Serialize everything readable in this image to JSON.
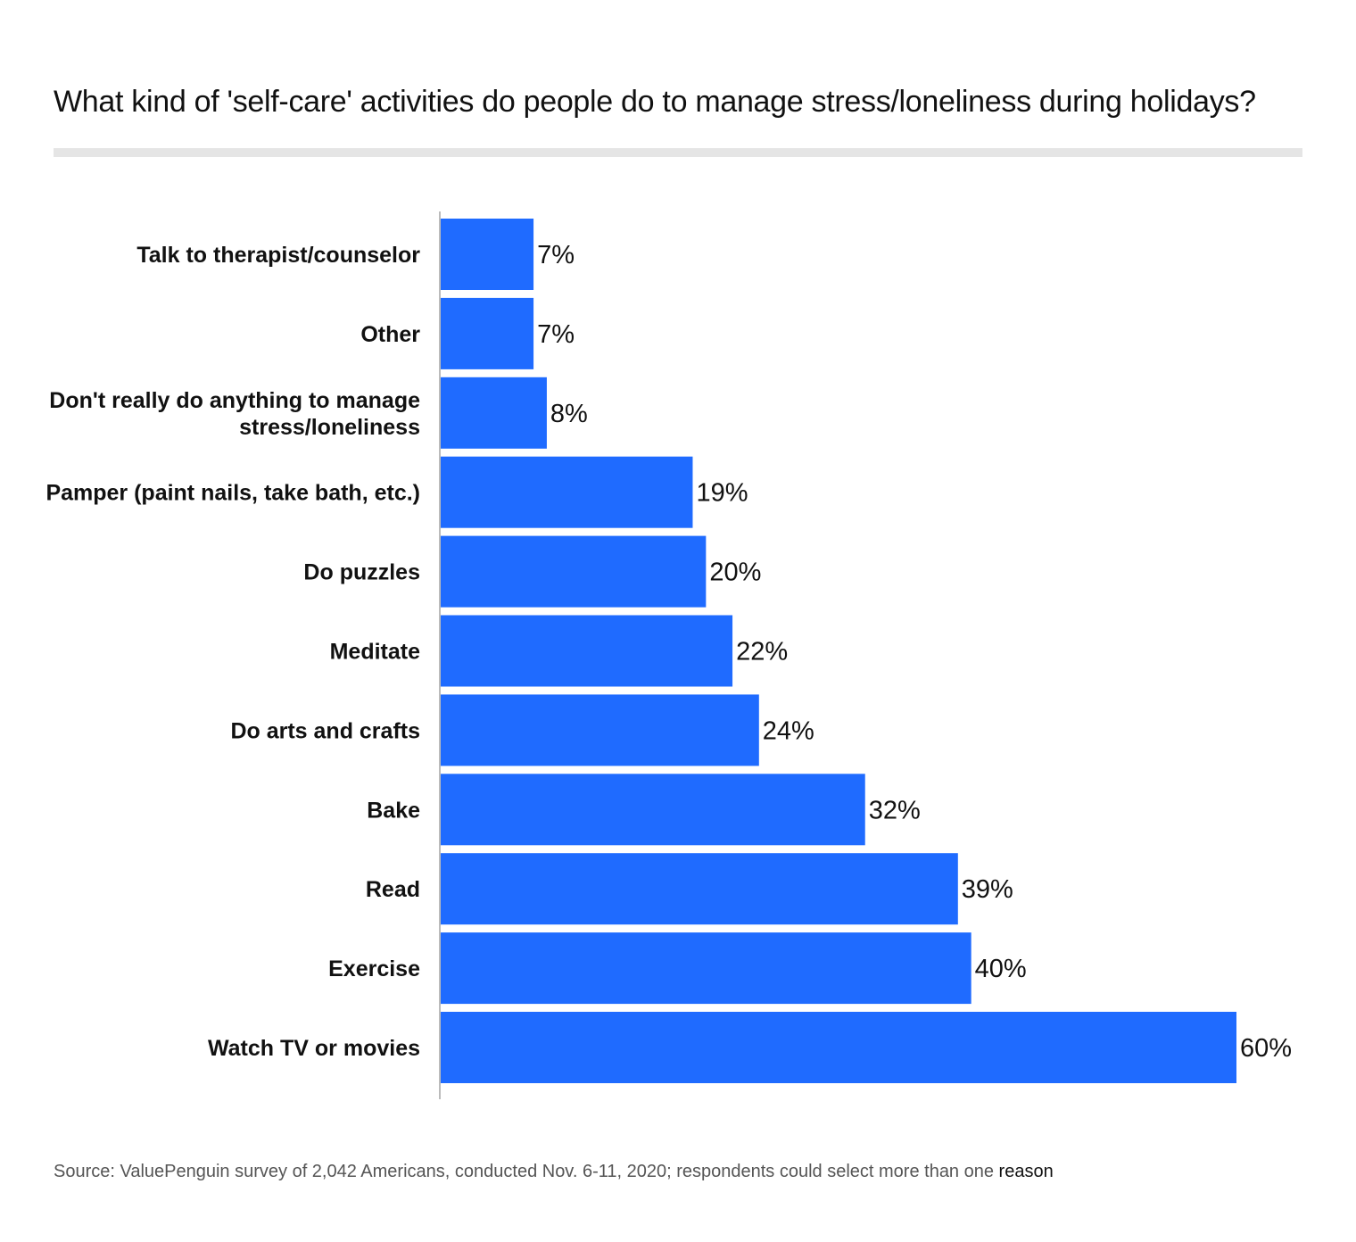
{
  "chart_data": {
    "type": "bar",
    "orientation": "horizontal",
    "title": "What kind of 'self-care' activities do people do to manage stress/loneliness during holidays?",
    "categories": [
      [
        "Talk to therapist/counselor"
      ],
      [
        "Other"
      ],
      [
        "Don't really do anything to manage",
        "stress/loneliness"
      ],
      [
        "Pamper (paint nails, take bath, etc.)"
      ],
      [
        "Do puzzles"
      ],
      [
        "Meditate"
      ],
      [
        "Do arts and crafts"
      ],
      [
        "Bake"
      ],
      [
        "Read"
      ],
      [
        "Exercise"
      ],
      [
        "Watch TV or movies"
      ]
    ],
    "values": [
      7,
      7,
      8,
      19,
      20,
      22,
      24,
      32,
      39,
      40,
      60
    ],
    "value_labels": [
      "7%",
      "7%",
      "8%",
      "19%",
      "20%",
      "22%",
      "24%",
      "32%",
      "39%",
      "40%",
      "60%"
    ],
    "unit": "%",
    "xlim": [
      0,
      60
    ],
    "xlabel": "",
    "ylabel": "",
    "grid": false,
    "legend": "none",
    "bar_color": "#1f6bff",
    "axis_color": "#bbbbbb"
  },
  "source": {
    "text": "Source: ValuePenguin survey of 2,042 Americans, conducted Nov. 6-11, 2020; respondents could select more than one",
    "last_word": "reason"
  }
}
